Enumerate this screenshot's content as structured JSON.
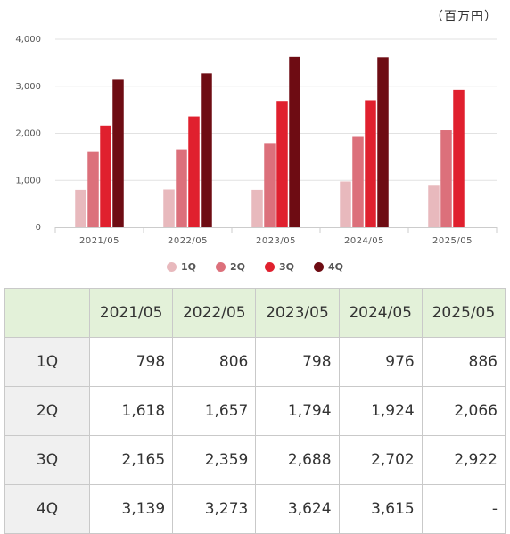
{
  "unit_label": "（百万円）",
  "chart_data": {
    "type": "bar",
    "categories": [
      "2021/05",
      "2022/05",
      "2023/05",
      "2024/05",
      "2025/05"
    ],
    "series": [
      {
        "name": "1Q",
        "color": "#e8b9bd",
        "values": [
          798,
          806,
          798,
          976,
          886
        ]
      },
      {
        "name": "2Q",
        "color": "#dc707b",
        "values": [
          1618,
          1657,
          1794,
          1924,
          2066
        ]
      },
      {
        "name": "3Q",
        "color": "#e0202e",
        "values": [
          2165,
          2359,
          2688,
          2702,
          2922
        ]
      },
      {
        "name": "4Q",
        "color": "#6e0c13",
        "values": [
          3139,
          3273,
          3624,
          3615,
          null
        ]
      }
    ],
    "y_ticks": [
      "0",
      "1,000",
      "2,000",
      "3,000",
      "4,000"
    ],
    "ylim": [
      0,
      4000
    ],
    "grid": true,
    "legend": "bottom"
  },
  "table": {
    "header": [
      "",
      "2021/05",
      "2022/05",
      "2023/05",
      "2024/05",
      "2025/05"
    ],
    "rows": [
      {
        "label": "1Q",
        "cells": [
          "798",
          "806",
          "798",
          "976",
          "886"
        ]
      },
      {
        "label": "2Q",
        "cells": [
          "1,618",
          "1,657",
          "1,794",
          "1,924",
          "2,066"
        ]
      },
      {
        "label": "3Q",
        "cells": [
          "2,165",
          "2,359",
          "2,688",
          "2,702",
          "2,922"
        ]
      },
      {
        "label": "4Q",
        "cells": [
          "3,139",
          "3,273",
          "3,624",
          "3,615",
          "-"
        ]
      }
    ]
  }
}
